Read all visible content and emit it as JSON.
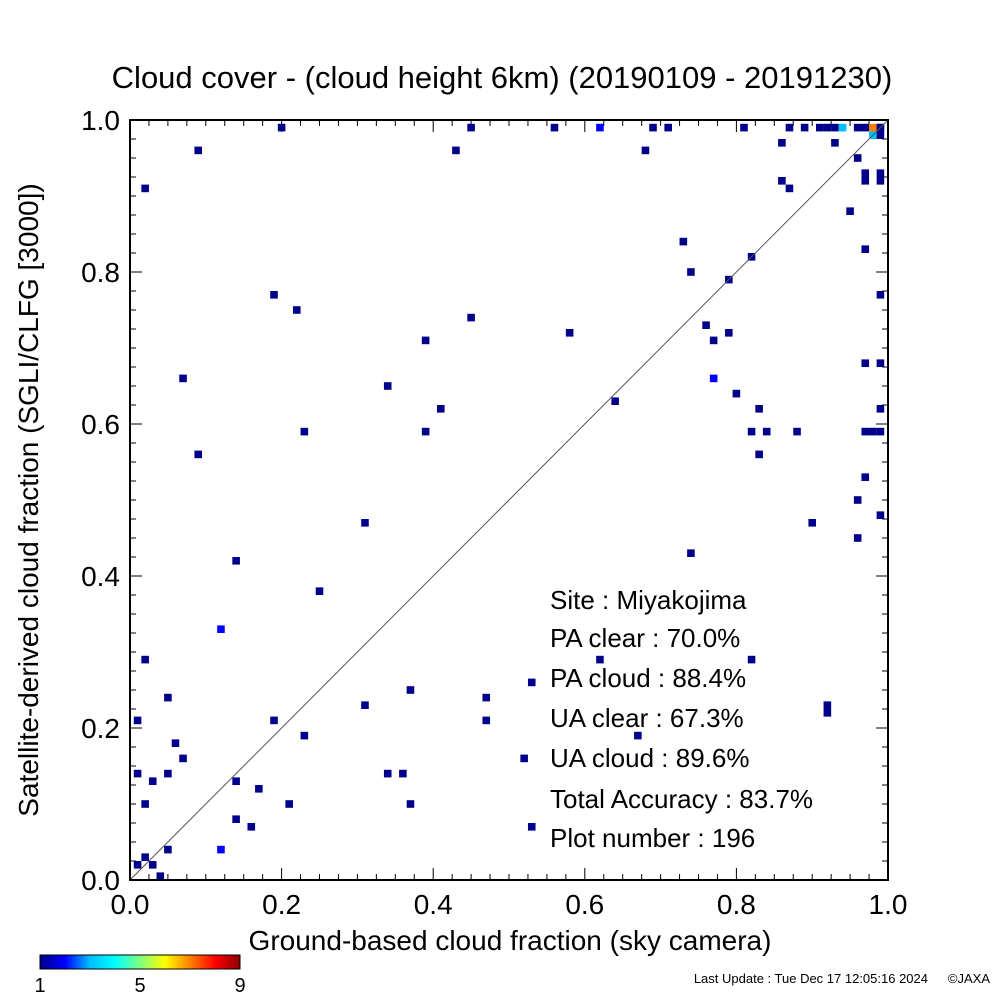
{
  "chart_data": {
    "type": "heatmap",
    "title": "Cloud cover - (cloud height 6km)  (20190109 - 20191230)",
    "xlabel": "Ground-based cloud fraction (sky camera)",
    "ylabel": "Satellite-derived cloud fraction (SGLI/CLFG [3000])",
    "xlim": [
      0,
      1
    ],
    "ylim": [
      0,
      1
    ],
    "x_ticks": [
      "0.0",
      "0.2",
      "0.4",
      "0.6",
      "0.8",
      "1.0"
    ],
    "y_ticks": [
      "0.0",
      "0.2",
      "0.4",
      "0.6",
      "0.8",
      "1.0"
    ],
    "grid": false,
    "reference_line": "y = x",
    "colorbar": {
      "min_label": "1",
      "mid_label": "5",
      "max_label": "9",
      "colors": [
        "#00008b",
        "#0000ff",
        "#00bfff",
        "#00ffff",
        "#7fff7f",
        "#ffff00",
        "#ff8000",
        "#ff0000",
        "#8b0000"
      ]
    },
    "stats": {
      "site": "Site : Miyakojima",
      "pa_clear": "PA clear :  70.0%",
      "pa_cloud": "PA cloud :  88.4%",
      "ua_clear": "UA clear :  67.3%",
      "ua_cloud": "UA cloud :  89.6%",
      "total_accuracy": "Total Accuracy :  83.7%",
      "plot_number": "Plot number :       196"
    },
    "points": [
      {
        "x": 0.2,
        "y": 0.99,
        "count": 1
      },
      {
        "x": 0.45,
        "y": 0.99,
        "count": 1
      },
      {
        "x": 0.56,
        "y": 0.99,
        "count": 1
      },
      {
        "x": 0.62,
        "y": 0.99,
        "count": 2
      },
      {
        "x": 0.69,
        "y": 0.99,
        "count": 1
      },
      {
        "x": 0.71,
        "y": 0.99,
        "count": 1
      },
      {
        "x": 0.81,
        "y": 0.99,
        "count": 1
      },
      {
        "x": 0.87,
        "y": 0.99,
        "count": 1
      },
      {
        "x": 0.89,
        "y": 0.99,
        "count": 1
      },
      {
        "x": 0.91,
        "y": 0.99,
        "count": 1
      },
      {
        "x": 0.92,
        "y": 0.99,
        "count": 1
      },
      {
        "x": 0.93,
        "y": 0.99,
        "count": 1
      },
      {
        "x": 0.94,
        "y": 0.99,
        "count": 3
      },
      {
        "x": 0.96,
        "y": 0.99,
        "count": 1
      },
      {
        "x": 0.97,
        "y": 0.99,
        "count": 1
      },
      {
        "x": 0.98,
        "y": 0.99,
        "count": 7
      },
      {
        "x": 0.99,
        "y": 0.99,
        "count": 9
      },
      {
        "x": 0.98,
        "y": 0.98,
        "count": 3
      },
      {
        "x": 0.99,
        "y": 0.98,
        "count": 1
      },
      {
        "x": 0.09,
        "y": 0.96,
        "count": 1
      },
      {
        "x": 0.43,
        "y": 0.96,
        "count": 1
      },
      {
        "x": 0.68,
        "y": 0.96,
        "count": 1
      },
      {
        "x": 0.86,
        "y": 0.97,
        "count": 1
      },
      {
        "x": 0.93,
        "y": 0.97,
        "count": 1
      },
      {
        "x": 0.96,
        "y": 0.95,
        "count": 1
      },
      {
        "x": 0.97,
        "y": 0.93,
        "count": 1
      },
      {
        "x": 0.97,
        "y": 0.92,
        "count": 1
      },
      {
        "x": 0.99,
        "y": 0.93,
        "count": 1
      },
      {
        "x": 0.99,
        "y": 0.92,
        "count": 1
      },
      {
        "x": 0.02,
        "y": 0.91,
        "count": 1
      },
      {
        "x": 0.86,
        "y": 0.92,
        "count": 1
      },
      {
        "x": 0.87,
        "y": 0.91,
        "count": 1
      },
      {
        "x": 0.95,
        "y": 0.88,
        "count": 1
      },
      {
        "x": 0.73,
        "y": 0.84,
        "count": 1
      },
      {
        "x": 0.97,
        "y": 0.83,
        "count": 1
      },
      {
        "x": 0.82,
        "y": 0.82,
        "count": 1
      },
      {
        "x": 0.74,
        "y": 0.8,
        "count": 1
      },
      {
        "x": 0.79,
        "y": 0.79,
        "count": 1
      },
      {
        "x": 0.19,
        "y": 0.77,
        "count": 1
      },
      {
        "x": 0.99,
        "y": 0.77,
        "count": 1
      },
      {
        "x": 0.22,
        "y": 0.75,
        "count": 1
      },
      {
        "x": 0.45,
        "y": 0.74,
        "count": 1
      },
      {
        "x": 0.76,
        "y": 0.73,
        "count": 1
      },
      {
        "x": 0.58,
        "y": 0.72,
        "count": 1
      },
      {
        "x": 0.79,
        "y": 0.72,
        "count": 1
      },
      {
        "x": 0.39,
        "y": 0.71,
        "count": 1
      },
      {
        "x": 0.77,
        "y": 0.71,
        "count": 1
      },
      {
        "x": 0.97,
        "y": 0.68,
        "count": 1
      },
      {
        "x": 0.99,
        "y": 0.68,
        "count": 1
      },
      {
        "x": 0.07,
        "y": 0.66,
        "count": 1
      },
      {
        "x": 0.77,
        "y": 0.66,
        "count": 2
      },
      {
        "x": 0.34,
        "y": 0.65,
        "count": 1
      },
      {
        "x": 0.8,
        "y": 0.64,
        "count": 1
      },
      {
        "x": 0.64,
        "y": 0.63,
        "count": 1
      },
      {
        "x": 0.41,
        "y": 0.62,
        "count": 1
      },
      {
        "x": 0.83,
        "y": 0.62,
        "count": 1
      },
      {
        "x": 0.99,
        "y": 0.62,
        "count": 1
      },
      {
        "x": 0.23,
        "y": 0.59,
        "count": 1
      },
      {
        "x": 0.39,
        "y": 0.59,
        "count": 1
      },
      {
        "x": 0.82,
        "y": 0.59,
        "count": 1
      },
      {
        "x": 0.84,
        "y": 0.59,
        "count": 1
      },
      {
        "x": 0.88,
        "y": 0.59,
        "count": 1
      },
      {
        "x": 0.97,
        "y": 0.59,
        "count": 1
      },
      {
        "x": 0.98,
        "y": 0.59,
        "count": 1
      },
      {
        "x": 0.99,
        "y": 0.59,
        "count": 1
      },
      {
        "x": 0.09,
        "y": 0.56,
        "count": 1
      },
      {
        "x": 0.83,
        "y": 0.56,
        "count": 1
      },
      {
        "x": 0.97,
        "y": 0.53,
        "count": 1
      },
      {
        "x": 0.96,
        "y": 0.5,
        "count": 1
      },
      {
        "x": 0.99,
        "y": 0.48,
        "count": 1
      },
      {
        "x": 0.31,
        "y": 0.47,
        "count": 1
      },
      {
        "x": 0.9,
        "y": 0.47,
        "count": 1
      },
      {
        "x": 0.96,
        "y": 0.45,
        "count": 1
      },
      {
        "x": 0.74,
        "y": 0.43,
        "count": 1
      },
      {
        "x": 0.14,
        "y": 0.42,
        "count": 1
      },
      {
        "x": 0.25,
        "y": 0.38,
        "count": 1
      },
      {
        "x": 0.12,
        "y": 0.33,
        "count": 2
      },
      {
        "x": 0.02,
        "y": 0.29,
        "count": 1
      },
      {
        "x": 0.62,
        "y": 0.29,
        "count": 1
      },
      {
        "x": 0.82,
        "y": 0.29,
        "count": 1
      },
      {
        "x": 0.53,
        "y": 0.26,
        "count": 1
      },
      {
        "x": 0.37,
        "y": 0.25,
        "count": 1
      },
      {
        "x": 0.05,
        "y": 0.24,
        "count": 1
      },
      {
        "x": 0.47,
        "y": 0.24,
        "count": 1
      },
      {
        "x": 0.31,
        "y": 0.23,
        "count": 1
      },
      {
        "x": 0.92,
        "y": 0.23,
        "count": 1
      },
      {
        "x": 0.92,
        "y": 0.22,
        "count": 1
      },
      {
        "x": 0.01,
        "y": 0.21,
        "count": 1
      },
      {
        "x": 0.19,
        "y": 0.21,
        "count": 1
      },
      {
        "x": 0.47,
        "y": 0.21,
        "count": 1
      },
      {
        "x": 0.23,
        "y": 0.19,
        "count": 1
      },
      {
        "x": 0.06,
        "y": 0.18,
        "count": 1
      },
      {
        "x": 0.07,
        "y": 0.16,
        "count": 1
      },
      {
        "x": 0.52,
        "y": 0.16,
        "count": 1
      },
      {
        "x": 0.01,
        "y": 0.14,
        "count": 1
      },
      {
        "x": 0.05,
        "y": 0.14,
        "count": 1
      },
      {
        "x": 0.34,
        "y": 0.14,
        "count": 1
      },
      {
        "x": 0.36,
        "y": 0.14,
        "count": 1
      },
      {
        "x": 0.03,
        "y": 0.13,
        "count": 1
      },
      {
        "x": 0.14,
        "y": 0.13,
        "count": 1
      },
      {
        "x": 0.17,
        "y": 0.12,
        "count": 1
      },
      {
        "x": 0.02,
        "y": 0.1,
        "count": 1
      },
      {
        "x": 0.21,
        "y": 0.1,
        "count": 1
      },
      {
        "x": 0.37,
        "y": 0.1,
        "count": 1
      },
      {
        "x": 0.14,
        "y": 0.08,
        "count": 1
      },
      {
        "x": 0.16,
        "y": 0.07,
        "count": 1
      },
      {
        "x": 0.53,
        "y": 0.07,
        "count": 1
      },
      {
        "x": 0.05,
        "y": 0.04,
        "count": 1
      },
      {
        "x": 0.12,
        "y": 0.04,
        "count": 2
      },
      {
        "x": 0.02,
        "y": 0.03,
        "count": 1
      },
      {
        "x": 0.01,
        "y": 0.02,
        "count": 1
      },
      {
        "x": 0.03,
        "y": 0.02,
        "count": 1
      },
      {
        "x": 0.04,
        "y": 0.0,
        "count": 1
      },
      {
        "x": 0.67,
        "y": 0.19,
        "count": 1
      },
      {
        "x": 0.99,
        "y": 0.99,
        "count": 1
      }
    ]
  },
  "footer": {
    "last_update": "Last Update : Tue Dec 17 12:05:16 2024",
    "copyright": "©JAXA"
  }
}
